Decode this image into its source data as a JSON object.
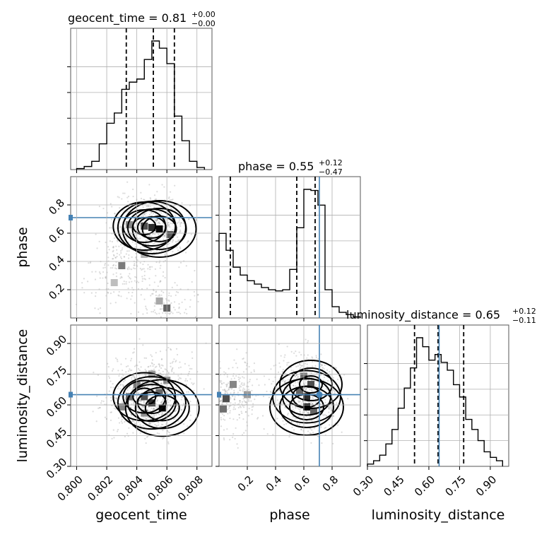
{
  "chart_data": {
    "type": "corner",
    "parameters": [
      "geocent_time",
      "phase",
      "luminosity_distance"
    ],
    "ranges": {
      "geocent_time": [
        0.7996,
        0.809
      ],
      "phase": [
        0.0,
        1.0
      ],
      "luminosity_distance": [
        0.3,
        0.99
      ]
    },
    "truths": {
      "phase": 0.71,
      "luminosity_distance": 0.65
    },
    "titles": [
      {
        "param": "geocent_time",
        "text": "geocent_time = 0.81",
        "sup": "+0.00",
        "sub": "−0.00"
      },
      {
        "param": "phase",
        "text": "phase = 0.55",
        "sup": "+0.12",
        "sub": "−0.47"
      },
      {
        "param": "luminosity_distance",
        "text": "luminosity_distance = 0.65",
        "sup": "+0.12",
        "sub": "−0.11"
      }
    ],
    "quantiles": {
      "geocent_time": [
        0.8033,
        0.8051,
        0.8065
      ],
      "phase": [
        0.08,
        0.55,
        0.68
      ],
      "luminosity_distance": [
        0.53,
        0.645,
        0.77
      ]
    },
    "ticks": {
      "geocent_time": {
        "values": [
          0.8,
          0.802,
          0.804,
          0.806,
          0.808
        ],
        "labels": [
          "0.800",
          "0.802",
          "0.804",
          "0.806",
          "0.808"
        ]
      },
      "phase": {
        "values": [
          0.2,
          0.4,
          0.6,
          0.8
        ],
        "labels": [
          "0.2",
          "0.4",
          "0.6",
          "0.8"
        ]
      },
      "luminosity_distance": {
        "values": [
          0.3,
          0.45,
          0.6,
          0.75,
          0.9
        ],
        "labels": [
          "0.30",
          "0.45",
          "0.60",
          "0.75",
          "0.90"
        ]
      }
    },
    "histograms": {
      "geocent_time": {
        "edges": [
          0.8,
          0.8005,
          0.801,
          0.8015,
          0.802,
          0.8025,
          0.803,
          0.8035,
          0.804,
          0.8045,
          0.805,
          0.8055,
          0.806,
          0.8065,
          0.807,
          0.8075,
          0.808,
          0.8085
        ],
        "counts": [
          1,
          3,
          8,
          25,
          45,
          55,
          78,
          85,
          88,
          107,
          125,
          118,
          103,
          52,
          28,
          8,
          2
        ]
      },
      "phase": {
        "edges": [
          0.0,
          0.05,
          0.1,
          0.15,
          0.2,
          0.25,
          0.3,
          0.35,
          0.4,
          0.45,
          0.5,
          0.55,
          0.6,
          0.65,
          0.7,
          0.75,
          0.8,
          0.85,
          0.9,
          0.95,
          1.0
        ],
        "counts": [
          75,
          60,
          45,
          38,
          33,
          30,
          27,
          25,
          24,
          25,
          43,
          80,
          114,
          113,
          100,
          25,
          10,
          5,
          3,
          1
        ]
      },
      "luminosity_distance": {
        "edges": [
          0.3,
          0.33,
          0.36,
          0.39,
          0.42,
          0.45,
          0.48,
          0.51,
          0.54,
          0.57,
          0.6,
          0.63,
          0.66,
          0.69,
          0.72,
          0.75,
          0.78,
          0.81,
          0.84,
          0.87,
          0.9,
          0.93,
          0.96
        ],
        "counts": [
          2,
          5,
          10,
          20,
          33,
          52,
          70,
          88,
          115,
          107,
          95,
          100,
          93,
          86,
          73,
          62,
          42,
          33,
          23,
          13,
          8,
          5
        ]
      }
    },
    "pairs": [
      {
        "x": "geocent_time",
        "y": "phase",
        "cells": [
          [
            0.8055,
            0.63,
            1.0
          ],
          [
            0.805,
            0.64,
            0.85
          ],
          [
            0.8045,
            0.65,
            0.7
          ],
          [
            0.8062,
            0.59,
            0.65
          ],
          [
            0.806,
            0.07,
            0.6
          ],
          [
            0.8035,
            0.66,
            0.45
          ],
          [
            0.803,
            0.37,
            0.5
          ],
          [
            0.8045,
            0.45,
            0.25
          ],
          [
            0.8025,
            0.25,
            0.2
          ],
          [
            0.8055,
            0.12,
            0.3
          ]
        ]
      },
      {
        "x": "geocent_time",
        "y": "luminosity_distance",
        "cells": [
          [
            0.8057,
            0.585,
            1.0
          ],
          [
            0.805,
            0.61,
            0.85
          ],
          [
            0.8045,
            0.64,
            0.7
          ],
          [
            0.8055,
            0.66,
            0.6
          ],
          [
            0.8035,
            0.64,
            0.55
          ],
          [
            0.804,
            0.7,
            0.5
          ],
          [
            0.806,
            0.72,
            0.45
          ],
          [
            0.803,
            0.59,
            0.45
          ],
          [
            0.805,
            0.75,
            0.35
          ],
          [
            0.8045,
            0.56,
            0.4
          ]
        ]
      },
      {
        "x": "phase",
        "y": "luminosity_distance",
        "cells": [
          [
            0.62,
            0.59,
            1.0
          ],
          [
            0.62,
            0.64,
            0.85
          ],
          [
            0.65,
            0.7,
            0.7
          ],
          [
            0.6,
            0.74,
            0.55
          ],
          [
            0.05,
            0.63,
            0.7
          ],
          [
            0.03,
            0.58,
            0.55
          ],
          [
            0.1,
            0.7,
            0.45
          ],
          [
            0.2,
            0.65,
            0.35
          ],
          [
            0.67,
            0.57,
            0.6
          ],
          [
            0.57,
            0.67,
            0.6
          ]
        ]
      }
    ]
  }
}
